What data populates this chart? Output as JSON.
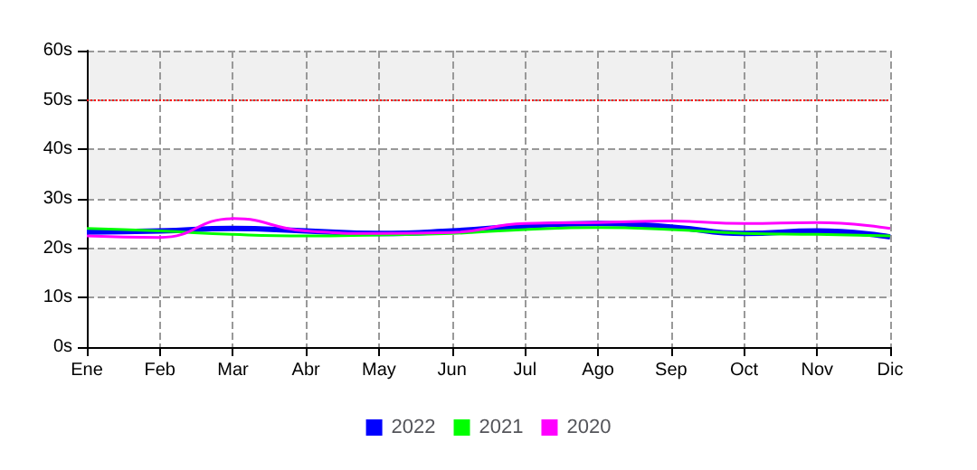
{
  "chart_data": {
    "type": "line",
    "categories": [
      "Ene",
      "Feb",
      "Mar",
      "Abr",
      "May",
      "Jun",
      "Jul",
      "Ago",
      "Sep",
      "Oct",
      "Nov",
      "Dic"
    ],
    "series": [
      {
        "name": "2022",
        "color": "#0000ff",
        "values": [
          23.3,
          23.5,
          24,
          23.5,
          23,
          23.5,
          24.5,
          25,
          24.3,
          23,
          23.5,
          22.3
        ]
      },
      {
        "name": "2021",
        "color": "#00ff00",
        "values": [
          24,
          23.5,
          22.8,
          22.5,
          22.7,
          23,
          23.8,
          24.2,
          23.8,
          23,
          22.8,
          22.5
        ]
      },
      {
        "name": "2020",
        "color": "#ff00ff",
        "values": [
          22.5,
          22.2,
          26,
          23.5,
          23,
          23.2,
          25,
          25.2,
          25.5,
          25,
          25.2,
          24
        ]
      }
    ],
    "ylim": [
      0,
      60
    ],
    "yticks": [
      {
        "value": 0,
        "label": "0s"
      },
      {
        "value": 10,
        "label": "10s"
      },
      {
        "value": 20,
        "label": "20s"
      },
      {
        "value": 30,
        "label": "30s"
      },
      {
        "value": 40,
        "label": "40s"
      },
      {
        "value": 50,
        "label": "50s"
      },
      {
        "value": 60,
        "label": "60s"
      }
    ],
    "ref_lines": [
      {
        "axis": "y",
        "value": 50,
        "color": "#ff0000",
        "line_style": "dotted"
      }
    ],
    "grid": true,
    "legend": "bottom",
    "marker": "none",
    "line_style": "solid"
  }
}
